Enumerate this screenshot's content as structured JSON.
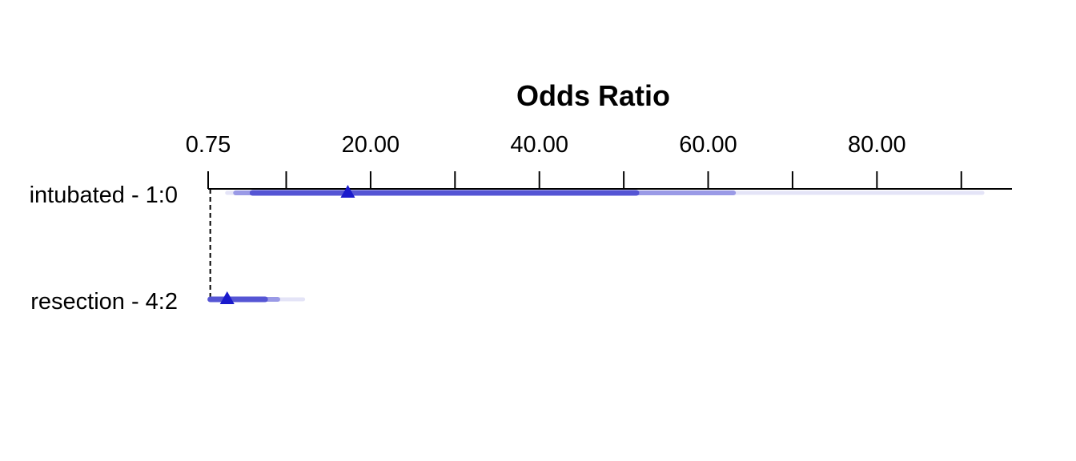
{
  "chart_data": {
    "type": "forest",
    "title": "Odds Ratio",
    "x_axis": {
      "position": "top",
      "min": 0.75,
      "max": 96,
      "ticks": [
        0.75,
        10,
        20,
        30,
        40,
        50,
        60,
        70,
        80,
        90
      ],
      "tick_labels": [
        {
          "value": 0.75,
          "label": "0.75"
        },
        {
          "value": 20,
          "label": "20.00"
        },
        {
          "value": 40,
          "label": "40.00"
        },
        {
          "value": 60,
          "label": "60.00"
        },
        {
          "value": 80,
          "label": "80.00"
        }
      ]
    },
    "reference_line": 1,
    "rows": [
      {
        "label": "intubated - 1:0",
        "estimate": 17.3,
        "ci_inner": [
          6.0,
          51.5
        ],
        "ci_mid": [
          4.0,
          63.0
        ],
        "ci_outer": [
          3.0,
          92.5
        ]
      },
      {
        "label": "resection - 4:2",
        "estimate": 3.0,
        "ci_inner": [
          1.0,
          7.5
        ],
        "ci_mid": [
          1.0,
          9.0
        ],
        "ci_outer": [
          1.0,
          12.0
        ]
      }
    ],
    "colors": {
      "point": "#1a1acc",
      "ci_inner": "#5555d4",
      "ci_mid": "#9a9ae6",
      "ci_outer": "#e4e4f7",
      "axis": "#000000"
    },
    "legend": "none",
    "grid": false
  }
}
